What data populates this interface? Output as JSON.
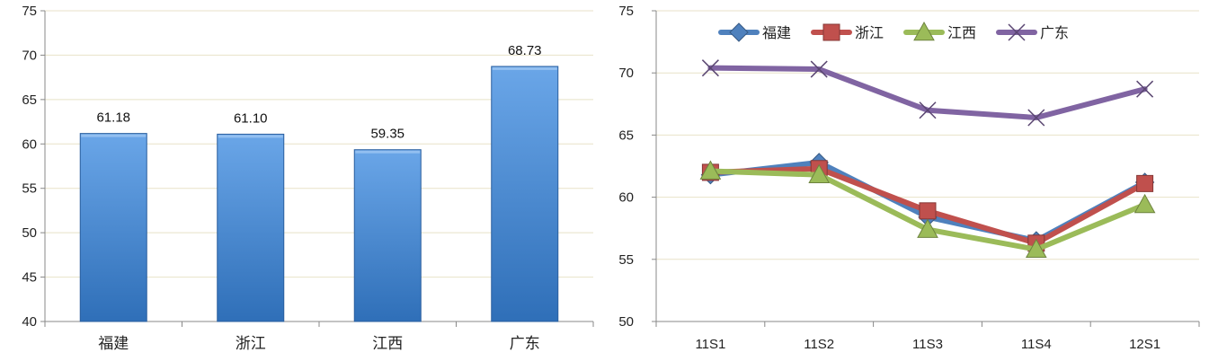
{
  "chart_data": [
    {
      "type": "bar",
      "categories": [
        "福建",
        "浙江",
        "江西",
        "广东"
      ],
      "values": [
        61.18,
        61.1,
        59.35,
        68.73
      ],
      "data_labels": [
        "61.18",
        "61.10",
        "59.35",
        "68.73"
      ],
      "yticks": [
        "40",
        "45",
        "50",
        "55",
        "60",
        "65",
        "70",
        "75"
      ],
      "ylim": [
        40,
        75
      ],
      "grid": true,
      "colors": {
        "bar_top": "#6aa6e8",
        "bar_bottom": "#2f6fb8",
        "grid": "#e8e2c8"
      }
    },
    {
      "type": "line",
      "x": [
        "11S1",
        "11S2",
        "11S3",
        "11S4",
        "12S1"
      ],
      "yticks": [
        "50",
        "55",
        "60",
        "65",
        "70",
        "75"
      ],
      "ylim": [
        50,
        75
      ],
      "grid": true,
      "legend_position": "top",
      "series": [
        {
          "name": "福建",
          "values": [
            61.8,
            62.8,
            58.4,
            56.5,
            61.2
          ],
          "color": "#4f81bd",
          "marker": "diamond"
        },
        {
          "name": "浙江",
          "values": [
            62.0,
            62.3,
            58.9,
            56.3,
            61.1
          ],
          "color": "#c0504d",
          "marker": "square"
        },
        {
          "name": "江西",
          "values": [
            62.1,
            61.8,
            57.4,
            55.8,
            59.4
          ],
          "color": "#9bbb59",
          "marker": "triangle"
        },
        {
          "name": "广东",
          "values": [
            70.4,
            70.3,
            67.0,
            66.4,
            68.7
          ],
          "color": "#8064a2",
          "marker": "x"
        }
      ]
    }
  ]
}
